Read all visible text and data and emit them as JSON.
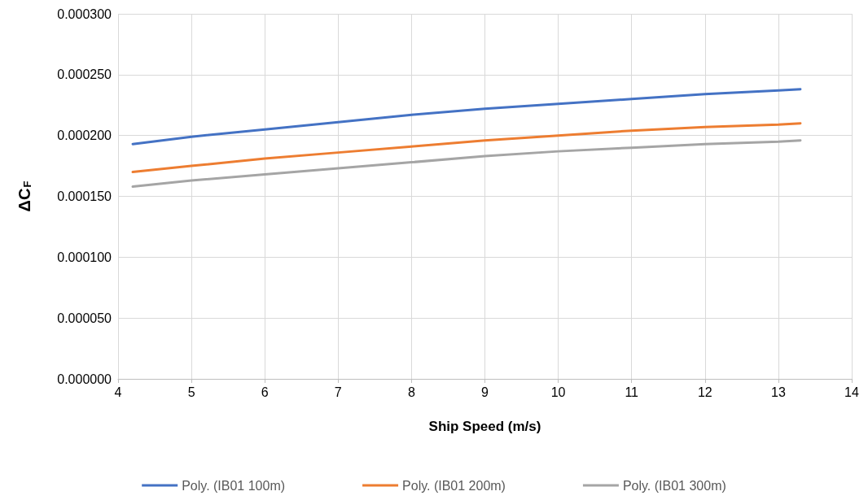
{
  "chart_data": {
    "type": "line",
    "xlabel": "Ship Speed (m/s)",
    "ylabel": "ΔC$_{F}$",
    "xlim": [
      4,
      14
    ],
    "xticks": [
      4,
      5,
      6,
      7,
      8,
      9,
      10,
      11,
      12,
      13,
      14
    ],
    "ylim": [
      0,
      0.0003
    ],
    "yticks": [
      {
        "value": 0,
        "label": "0.000000"
      },
      {
        "value": 5e-05,
        "label": "0.000050"
      },
      {
        "value": 0.0001,
        "label": "0.000100"
      },
      {
        "value": 0.00015,
        "label": "0.000150"
      },
      {
        "value": 0.0002,
        "label": "0.000200"
      },
      {
        "value": 0.00025,
        "label": "0.000250"
      },
      {
        "value": 0.0003,
        "label": "0.000300"
      }
    ],
    "x": [
      4.2,
      5,
      6,
      7,
      8,
      9,
      10,
      11,
      12,
      13,
      13.3
    ],
    "grid": true,
    "legend": "bottom",
    "marker": "none",
    "line_style": "solid",
    "series": [
      {
        "name": "Poly. (IB01 100m)",
        "color": "#4472c4",
        "values": [
          0.000193,
          0.000199,
          0.000205,
          0.000211,
          0.000217,
          0.000222,
          0.000226,
          0.00023,
          0.000234,
          0.000237,
          0.000238
        ]
      },
      {
        "name": "Poly. (IB01 200m)",
        "color": "#ed7d31",
        "values": [
          0.00017,
          0.000175,
          0.000181,
          0.000186,
          0.000191,
          0.000196,
          0.0002,
          0.000204,
          0.000207,
          0.000209,
          0.00021
        ]
      },
      {
        "name": "Poly. (IB01 300m)",
        "color": "#a5a5a5",
        "values": [
          0.000158,
          0.000163,
          0.000168,
          0.000173,
          0.000178,
          0.000183,
          0.000187,
          0.00019,
          0.000193,
          0.000195,
          0.000196
        ]
      }
    ]
  }
}
